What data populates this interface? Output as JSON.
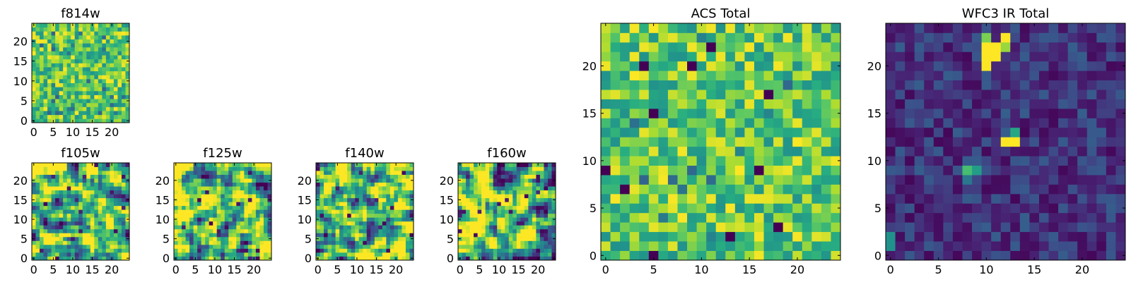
{
  "chart_data": [
    {
      "type": "heatmap",
      "title": "f814w",
      "grid_size": 25,
      "xlim": [
        -0.5,
        24.5
      ],
      "ylim": [
        -0.5,
        24.5
      ],
      "xticks": [
        0,
        5,
        10,
        15,
        20
      ],
      "yticks": [
        0,
        5,
        10,
        15,
        20
      ],
      "colormap": "viridis",
      "pattern": "fine-grained noise, mostly green-yellow",
      "seed": 11
    },
    {
      "type": "heatmap",
      "title": "f105w",
      "grid_size": 25,
      "xlim": [
        -0.5,
        24.5
      ],
      "ylim": [
        -0.5,
        24.5
      ],
      "xticks": [
        0,
        5,
        10,
        15,
        20
      ],
      "yticks": [
        0,
        5,
        10,
        15,
        20
      ],
      "colormap": "viridis",
      "pattern": "smooth noise, green-yellow with dark spots",
      "seed": 23
    },
    {
      "type": "heatmap",
      "title": "f125w",
      "grid_size": 25,
      "xlim": [
        -0.5,
        24.5
      ],
      "ylim": [
        -0.5,
        24.5
      ],
      "xticks": [
        0,
        5,
        10,
        15,
        20
      ],
      "yticks": [
        0,
        5,
        10,
        15,
        20
      ],
      "colormap": "viridis",
      "pattern": "smooth noise, green-yellow with dark spots",
      "seed": 37
    },
    {
      "type": "heatmap",
      "title": "f140w",
      "grid_size": 25,
      "xlim": [
        -0.5,
        24.5
      ],
      "ylim": [
        -0.5,
        24.5
      ],
      "xticks": [
        0,
        5,
        10,
        15,
        20
      ],
      "yticks": [
        0,
        5,
        10,
        15,
        20
      ],
      "colormap": "viridis",
      "pattern": "smooth noise, green-yellow with dark spots",
      "seed": 41
    },
    {
      "type": "heatmap",
      "title": "f160w",
      "grid_size": 25,
      "xlim": [
        -0.5,
        24.5
      ],
      "ylim": [
        -0.5,
        24.5
      ],
      "xticks": [
        0,
        5,
        10,
        15,
        20
      ],
      "yticks": [
        0,
        5,
        10,
        15,
        20
      ],
      "colormap": "viridis",
      "pattern": "smooth noise, green-yellow with dark spots",
      "seed": 53
    },
    {
      "type": "heatmap",
      "title": "ACS Total",
      "grid_size": 25,
      "xlim": [
        -0.5,
        24.5
      ],
      "ylim": [
        -0.5,
        24.5
      ],
      "xticks": [
        0,
        5,
        10,
        15,
        20
      ],
      "yticks": [
        0,
        5,
        10,
        15,
        20
      ],
      "colormap": "viridis",
      "pattern": "noise, mostly green-yellow with scattered dark pixels",
      "seed": 67,
      "dark_pixels": [
        [
          0,
          9
        ],
        [
          5,
          0
        ],
        [
          4,
          20
        ],
        [
          2,
          7
        ],
        [
          16,
          9
        ],
        [
          17,
          17
        ],
        [
          13,
          2
        ],
        [
          18,
          3
        ],
        [
          5,
          15
        ],
        [
          11,
          22
        ],
        [
          9,
          20
        ]
      ]
    },
    {
      "type": "heatmap",
      "title": "WFC3 IR Total",
      "grid_size": 25,
      "xlim": [
        -0.5,
        24.5
      ],
      "ylim": [
        -0.5,
        24.5
      ],
      "xticks": [
        0,
        5,
        10,
        15,
        20
      ],
      "yticks": [
        0,
        5,
        10,
        15,
        20
      ],
      "colormap": "viridis",
      "pattern": "dark purple background with a few bright sources",
      "seed": 79,
      "bright_pixels": [
        [
          10,
          22,
          1.0
        ],
        [
          11,
          22,
          1.0
        ],
        [
          10,
          21,
          1.0
        ],
        [
          11,
          21,
          1.0
        ],
        [
          10,
          20,
          1.0
        ],
        [
          12,
          23,
          1.0
        ],
        [
          12,
          22,
          0.85
        ],
        [
          10,
          23,
          0.8
        ],
        [
          12,
          12,
          1.0
        ],
        [
          13,
          12,
          1.0
        ],
        [
          13,
          13,
          0.6
        ],
        [
          8,
          9,
          0.7
        ],
        [
          9,
          9,
          0.55
        ],
        [
          8,
          8,
          0.4
        ],
        [
          0,
          2,
          0.5
        ],
        [
          0,
          1,
          0.5
        ]
      ]
    }
  ]
}
